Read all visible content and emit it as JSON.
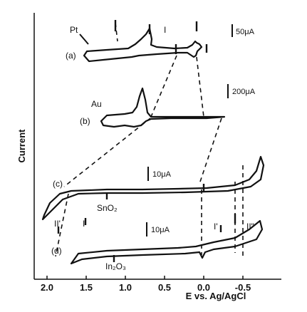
{
  "chart_data": {
    "type": "line",
    "title": "",
    "xlabel": "E vs. Ag/AgCl",
    "ylabel": "Current",
    "x_axis_reversed": true,
    "xlim": [
      2.2,
      -0.8
    ],
    "x_ticks": [
      2.0,
      1.5,
      1.0,
      0.5,
      0.0,
      -0.5
    ],
    "x_tick_labels": [
      "2.0",
      "1.5",
      "1.0",
      "0.5",
      "0.0",
      "-0.5"
    ],
    "grid": false,
    "legend": "none",
    "series": [
      {
        "label": "(a)",
        "material": "Pt",
        "scale_bar": "50μA",
        "points": [
          [
            1.4,
            -0.2
          ],
          [
            1.35,
            0.0
          ],
          [
            1.2,
            0.1
          ],
          [
            1.0,
            0.15
          ],
          [
            0.8,
            0.3
          ],
          [
            0.7,
            0.6
          ],
          [
            0.62,
            1.4
          ],
          [
            0.58,
            0.8
          ],
          [
            0.5,
            0.4
          ],
          [
            0.4,
            0.3
          ],
          [
            0.3,
            0.25
          ],
          [
            0.2,
            0.3
          ],
          [
            0.1,
            0.5
          ],
          [
            0.05,
            1.3
          ],
          [
            0.0,
            0.7
          ],
          [
            -0.05,
            0.1
          ],
          [
            -0.1,
            0.5
          ],
          [
            -0.05,
            -0.1
          ],
          [
            0.0,
            -0.7
          ],
          [
            0.05,
            -0.1
          ],
          [
            0.2,
            -0.05
          ],
          [
            0.4,
            -0.08
          ],
          [
            0.6,
            -0.15
          ],
          [
            0.8,
            -0.3
          ],
          [
            1.0,
            -0.5
          ],
          [
            1.2,
            -0.7
          ],
          [
            1.4,
            -0.2
          ]
        ],
        "markers": [
          {
            "label": "I",
            "x": 0.5
          }
        ]
      },
      {
        "label": "(b)",
        "material": "Au",
        "scale_bar": "200μA",
        "points": [
          [
            1.45,
            -0.1
          ],
          [
            1.3,
            0.05
          ],
          [
            1.1,
            0.2
          ],
          [
            0.9,
            0.5
          ],
          [
            0.8,
            1.2
          ],
          [
            0.72,
            2.2
          ],
          [
            0.66,
            1.2
          ],
          [
            0.6,
            0.1
          ],
          [
            0.4,
            0.0
          ],
          [
            0.2,
            0.0
          ],
          [
            0.0,
            0.0
          ],
          [
            -0.2,
            0.0
          ],
          [
            0.0,
            -0.05
          ],
          [
            0.3,
            -0.05
          ],
          [
            0.58,
            -0.15
          ],
          [
            0.7,
            -0.4
          ],
          [
            0.85,
            -0.5
          ],
          [
            1.0,
            -0.2
          ],
          [
            1.2,
            -0.3
          ],
          [
            1.45,
            -0.1
          ]
        ]
      },
      {
        "label": "(c)",
        "material": "SnO₂",
        "scale_bar": "10μA",
        "points": [
          [
            2.0,
            -1.2
          ],
          [
            1.8,
            -0.3
          ],
          [
            1.5,
            0.0
          ],
          [
            1.0,
            0.05
          ],
          [
            0.5,
            0.05
          ],
          [
            0.0,
            0.1
          ],
          [
            -0.4,
            0.35
          ],
          [
            -0.6,
            0.9
          ],
          [
            -0.7,
            1.6
          ],
          [
            -0.6,
            0.5
          ],
          [
            -0.4,
            0.0
          ],
          [
            0.0,
            -0.15
          ],
          [
            0.5,
            -0.2
          ],
          [
            1.0,
            -0.15
          ],
          [
            1.5,
            -0.1
          ],
          [
            1.9,
            -0.8
          ],
          [
            2.1,
            -1.4
          ]
        ],
        "markers": [
          {
            "label": "II'",
            "x": 1.85
          },
          {
            "label": "I",
            "x": 1.7
          }
        ]
      },
      {
        "label": "(d)",
        "material": "In₂O₃",
        "scale_bar": "10μA",
        "points": [
          [
            1.65,
            -0.6
          ],
          [
            1.5,
            -0.1
          ],
          [
            1.0,
            0.0
          ],
          [
            0.5,
            0.05
          ],
          [
            0.0,
            0.1
          ],
          [
            -0.3,
            0.3
          ],
          [
            -0.5,
            0.7
          ],
          [
            -0.6,
            1.2
          ],
          [
            -0.5,
            0.3
          ],
          [
            -0.2,
            0.05
          ],
          [
            0.0,
            -0.3
          ],
          [
            0.1,
            0.0
          ],
          [
            0.5,
            -0.1
          ],
          [
            1.0,
            -0.15
          ],
          [
            1.5,
            -0.3
          ],
          [
            1.65,
            -0.6
          ]
        ],
        "markers": [
          {
            "label": "I'",
            "x": -0.15
          },
          {
            "label": "II\"",
            "x": -0.6
          }
        ]
      }
    ]
  }
}
